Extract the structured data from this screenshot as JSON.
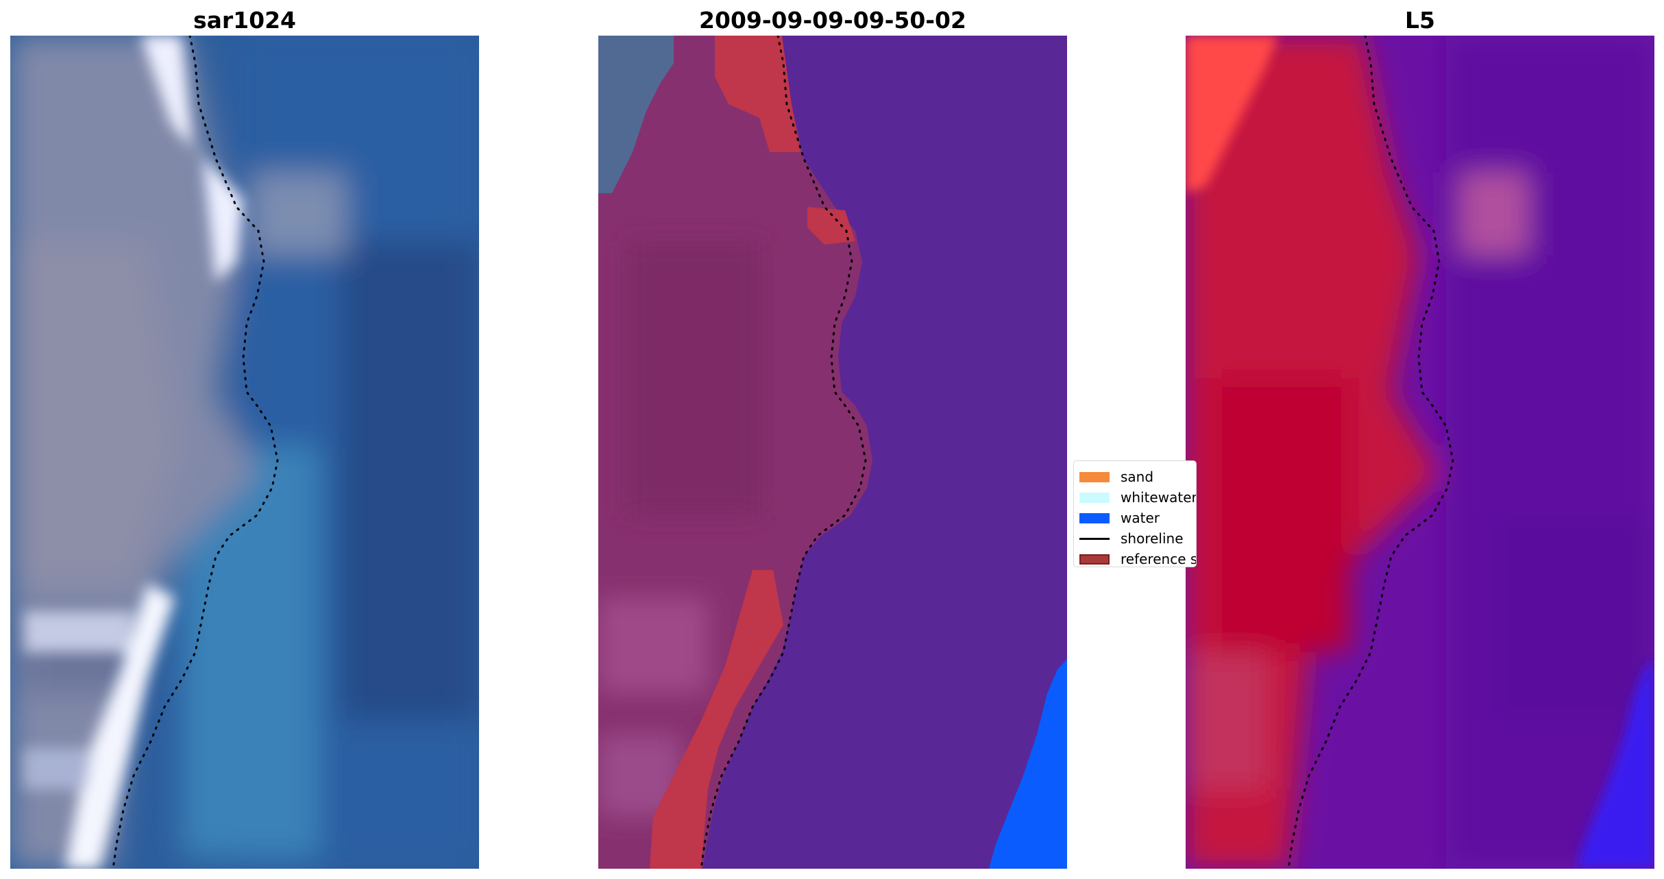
{
  "panels": [
    {
      "title": "sar1024"
    },
    {
      "title": "2009-09-09-09-50-02"
    },
    {
      "title": "L5"
    }
  ],
  "legend": {
    "items": [
      {
        "label": "sand",
        "kind": "patch",
        "color": "#f58a3a",
        "border": "#f58a3a"
      },
      {
        "label": "whitewater",
        "kind": "patch",
        "color": "#c9fbff",
        "border": "#c9fbff"
      },
      {
        "label": "water",
        "kind": "patch",
        "color": "#0a5cff",
        "border": "#0a5cff"
      },
      {
        "label": "shoreline",
        "kind": "line",
        "color": "#000000"
      },
      {
        "label": "reference shoreline",
        "kind": "patch",
        "color": "#a83a3a",
        "border": "#7a1e1e"
      }
    ]
  },
  "colors": {
    "sar_land": "#7f86a8",
    "sar_water": "#2d64a6",
    "sar_whitewater": "#f2f4ff",
    "class_land": "#8a2f6f",
    "class_water": "#5a2796",
    "class_sand_overlay": "#c0364a",
    "class_blue_water": "#0a5cff",
    "index_land": "#c8163f",
    "index_water": "#6a11a4",
    "index_bright_red": "#ff4a4a",
    "shoreline": "#000000"
  }
}
